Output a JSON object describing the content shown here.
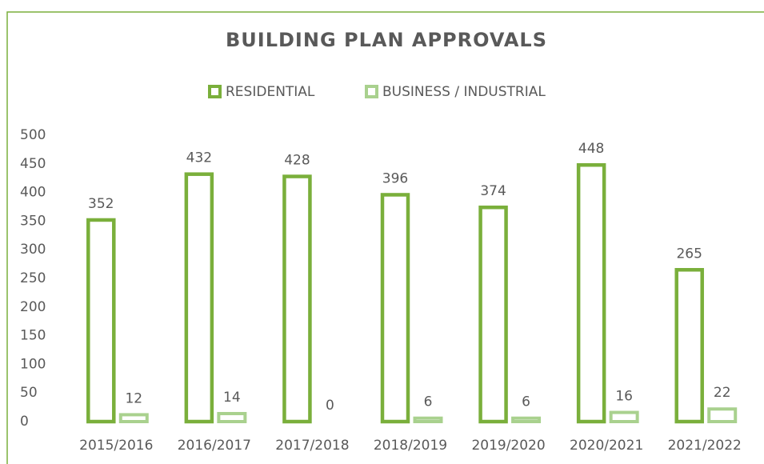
{
  "chart_data": {
    "type": "bar",
    "title": "BUILDING PLAN APPROVALS",
    "categories": [
      "2015/2016",
      "2016/2017",
      "2017/2018",
      "2018/2019",
      "2019/2020",
      "2020/2021",
      "2021/2022"
    ],
    "series": [
      {
        "name": "RESIDENTIAL",
        "color": "#7aaf3b",
        "values": [
          352,
          432,
          428,
          396,
          374,
          448,
          265
        ]
      },
      {
        "name": "BUSINESS / INDUSTRIAL",
        "color": "#a9d18e",
        "values": [
          12,
          14,
          0,
          6,
          6,
          16,
          22
        ]
      }
    ],
    "ylim": [
      0,
      500
    ],
    "yticks": [
      0,
      50,
      100,
      150,
      200,
      250,
      300,
      350,
      400,
      450,
      500
    ],
    "legend": "top",
    "grid": false
  }
}
